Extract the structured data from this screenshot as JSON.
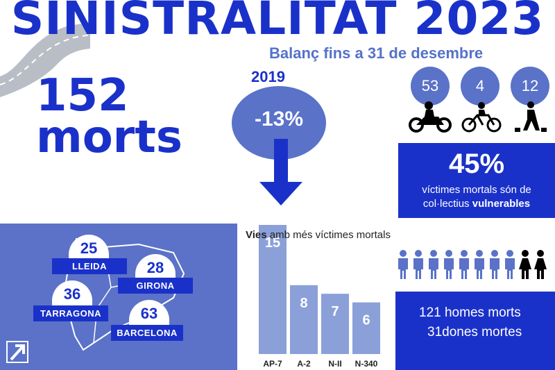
{
  "title": "SINISTRALITAT 2023",
  "subtitle": "Balanç fins a 31 de desembre",
  "deaths": {
    "number": "152",
    "label": "morts"
  },
  "comparison": {
    "year": "2019",
    "change": "-13%"
  },
  "vulnerable_groups": [
    {
      "count": "53",
      "icon": "motorcycle-icon"
    },
    {
      "count": "4",
      "icon": "bicycle-icon"
    },
    {
      "count": "12",
      "icon": "pedestrian-icon"
    }
  ],
  "vulnerable_summary": {
    "percent": "45%",
    "text_line1": "víctimes mortals són de",
    "text_line2_prefix": "col·lectius ",
    "text_line2_bold": "vulnerables"
  },
  "provinces": [
    {
      "name": "LLEIDA",
      "count": "25"
    },
    {
      "name": "GIRONA",
      "count": "28"
    },
    {
      "name": "TARRAGONA",
      "count": "36"
    },
    {
      "name": "BARCELONA",
      "count": "63"
    }
  ],
  "chart_title_bold": "Vies",
  "chart_title_rest": " amb més víctimes mortals",
  "chart_data": {
    "type": "bar",
    "title": "Vies amb més víctimes mortals",
    "categories": [
      "AP-7",
      "A-2",
      "N-II",
      "N-340"
    ],
    "values": [
      15,
      8,
      7,
      6
    ],
    "ylim": [
      0,
      15
    ]
  },
  "gender": {
    "men_line": "121 homes morts",
    "women_line": "31dones mortes",
    "icon_counts": {
      "men": 8,
      "women": 2
    }
  },
  "colors": {
    "primary": "#1a31c9",
    "secondary": "#5a72c8",
    "bar": "#8ba0d8"
  }
}
